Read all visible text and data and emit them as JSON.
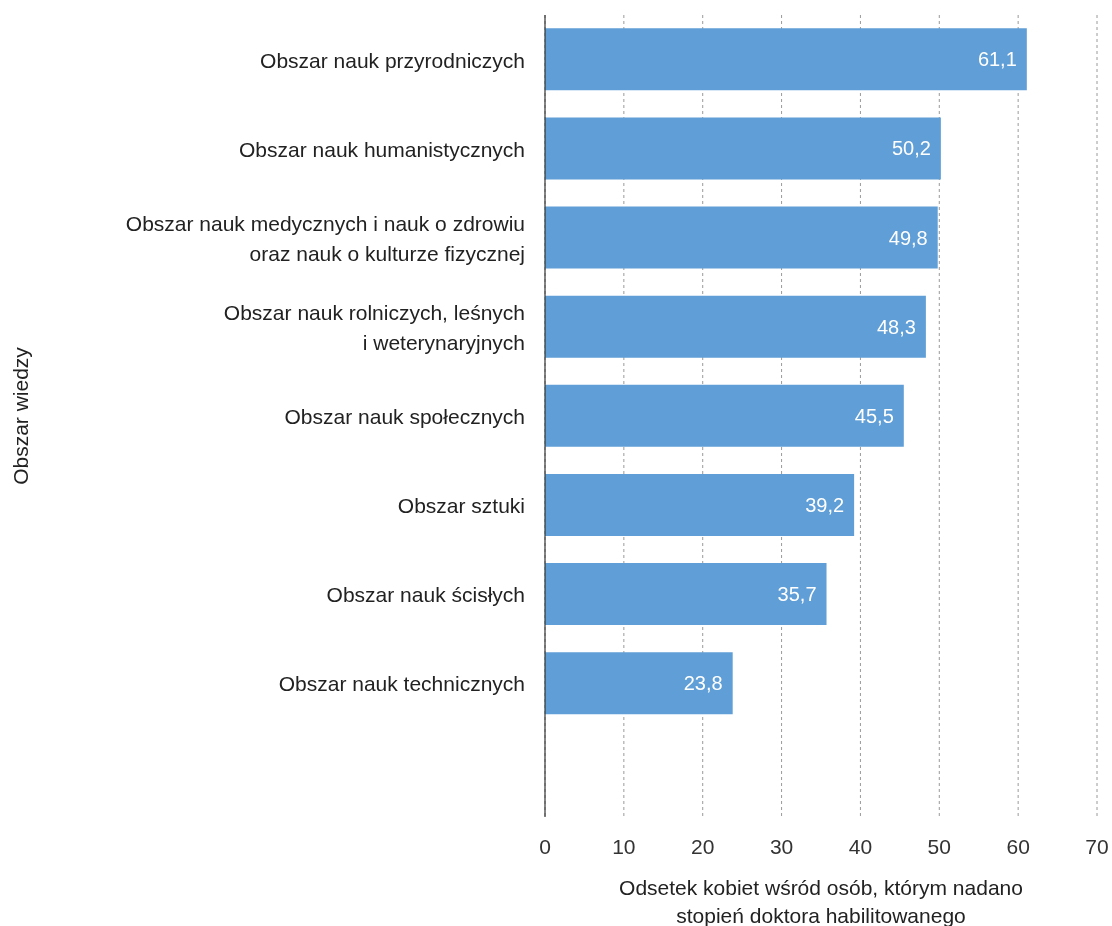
{
  "chart_data": {
    "type": "bar",
    "orientation": "horizontal",
    "categories": [
      "Obszar nauk przyrodniczych",
      "Obszar nauk humanistycznych",
      "Obszar nauk medycznych i nauk o zdrowiu\noraz nauk o kulturze fizycznej",
      "Obszar nauk rolniczych, leśnych\ni weterynaryjnych",
      "Obszar nauk społecznych",
      "Obszar sztuki",
      "Obszar nauk ścisłych",
      "Obszar nauk technicznych",
      null
    ],
    "values": [
      61.1,
      50.2,
      49.8,
      48.3,
      45.5,
      39.2,
      35.7,
      23.8,
      null
    ],
    "value_labels": [
      "61,1",
      "50,2",
      "49,8",
      "48,3",
      "45,5",
      "39,2",
      "35,7",
      "23,8",
      null
    ],
    "color": "#5f9ed6",
    "xlim": [
      0,
      70
    ],
    "xticks": [
      0,
      10,
      20,
      30,
      40,
      50,
      60,
      70
    ],
    "grid": "x",
    "xlabel": "Odsetek kobiet wśród osób, którym nadano\nstopień doktora habilitowanego",
    "ylabel": "Obszar wiedzy"
  }
}
